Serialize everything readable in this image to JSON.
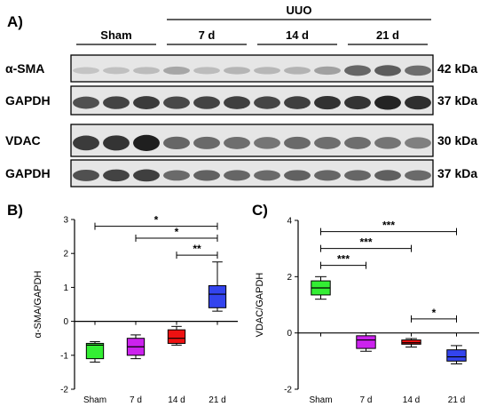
{
  "blot": {
    "panel_label": "A)",
    "group_main": "UUO",
    "groups": [
      "Sham",
      "7 d",
      "14 d",
      "21 d"
    ],
    "rows": [
      {
        "protein": "α-SMA",
        "size": "42 kDa"
      },
      {
        "protein": "GAPDH",
        "size": "37 kDa"
      },
      {
        "protein": "VDAC",
        "size": "30 kDa"
      },
      {
        "protein": "GAPDH",
        "size": "37 kDa"
      }
    ],
    "band_intensity": [
      [
        0.18,
        0.2,
        0.22,
        0.32,
        0.22,
        0.25,
        0.24,
        0.26,
        0.35,
        0.62,
        0.66,
        0.58
      ],
      [
        0.72,
        0.78,
        0.82,
        0.76,
        0.78,
        0.8,
        0.77,
        0.8,
        0.86,
        0.85,
        0.93,
        0.88
      ],
      [
        0.82,
        0.85,
        0.95,
        0.62,
        0.6,
        0.58,
        0.55,
        0.6,
        0.58,
        0.58,
        0.55,
        0.5
      ],
      [
        0.72,
        0.78,
        0.8,
        0.6,
        0.64,
        0.62,
        0.6,
        0.64,
        0.62,
        0.62,
        0.65,
        0.6
      ]
    ]
  },
  "chart_data": [
    {
      "type": "box",
      "panel_label": "B)",
      "ylabel": "α-SMA/GAPDH",
      "categories": [
        "Sham",
        "7 d",
        "14 d",
        "21 d"
      ],
      "ylim": [
        -2,
        3
      ],
      "yticks": [
        -2,
        -1,
        0,
        1,
        2,
        3
      ],
      "colors": [
        "#33ee33",
        "#cc22ee",
        "#ee1111",
        "#3344ee"
      ],
      "boxes": [
        {
          "min": -1.2,
          "q1": -1.1,
          "median": -0.7,
          "q3": -0.65,
          "max": -0.6
        },
        {
          "min": -1.1,
          "q1": -1.0,
          "median": -0.75,
          "q3": -0.5,
          "max": -0.4
        },
        {
          "min": -0.7,
          "q1": -0.65,
          "median": -0.5,
          "q3": -0.25,
          "max": -0.15
        },
        {
          "min": 0.3,
          "q1": 0.4,
          "median": 0.8,
          "q3": 1.05,
          "max": 1.75
        }
      ],
      "comparisons": [
        {
          "from": 0,
          "to": 3,
          "y": 2.8,
          "label": "*"
        },
        {
          "from": 1,
          "to": 3,
          "y": 2.45,
          "label": "*"
        },
        {
          "from": 2,
          "to": 3,
          "y": 1.95,
          "label": "**"
        }
      ]
    },
    {
      "type": "box",
      "panel_label": "C)",
      "ylabel": "VDAC/GAPDH",
      "categories": [
        "Sham",
        "7 d",
        "14 d",
        "21 d"
      ],
      "ylim": [
        -2,
        4
      ],
      "yticks": [
        -2,
        0,
        2,
        4
      ],
      "colors": [
        "#33ee33",
        "#cc22ee",
        "#ee1111",
        "#3344ee"
      ],
      "boxes": [
        {
          "min": 1.2,
          "q1": 1.35,
          "median": 1.6,
          "q3": 1.85,
          "max": 2.0
        },
        {
          "min": -0.65,
          "q1": -0.55,
          "median": -0.25,
          "q3": -0.1,
          "max": 0.0
        },
        {
          "min": -0.5,
          "q1": -0.4,
          "median": -0.35,
          "q3": -0.25,
          "max": -0.2
        },
        {
          "min": -1.1,
          "q1": -1.0,
          "median": -0.85,
          "q3": -0.6,
          "max": -0.45
        }
      ],
      "comparisons": [
        {
          "from": 0,
          "to": 3,
          "y": 3.6,
          "label": "***"
        },
        {
          "from": 0,
          "to": 2,
          "y": 3.0,
          "label": "***"
        },
        {
          "from": 0,
          "to": 1,
          "y": 2.4,
          "label": "***"
        },
        {
          "from": 2,
          "to": 3,
          "y": 0.5,
          "label": "*"
        }
      ]
    }
  ]
}
